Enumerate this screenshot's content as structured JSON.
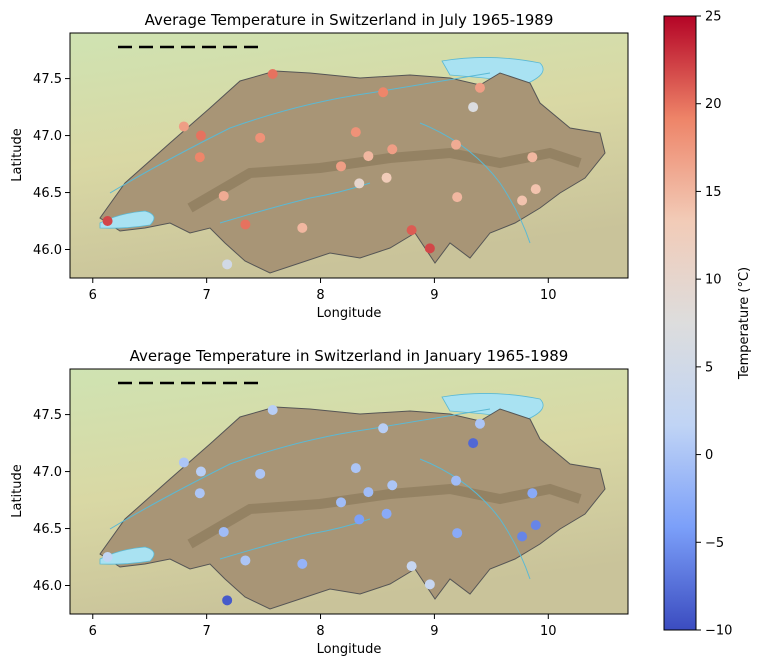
{
  "chart_data": [
    {
      "type": "scatter",
      "title": "Average Temperature in Switzerland in July 1965-1989",
      "xlabel": "Longitude",
      "ylabel": "Latitude",
      "xlim": [
        5.8,
        10.7
      ],
      "ylim": [
        45.75,
        47.9
      ],
      "xticks": [
        "6",
        "7",
        "8",
        "9",
        "10"
      ],
      "yticks": [
        "46.0",
        "46.5",
        "47.0",
        "47.5"
      ],
      "background": "shaded-relief map of Switzerland",
      "points": [
        {
          "x": 6.13,
          "y": 46.25,
          "value": 22
        },
        {
          "x": 6.8,
          "y": 47.08,
          "value": 17
        },
        {
          "x": 6.95,
          "y": 47.0,
          "value": 20
        },
        {
          "x": 6.94,
          "y": 46.81,
          "value": 19
        },
        {
          "x": 7.15,
          "y": 46.47,
          "value": 16
        },
        {
          "x": 7.18,
          "y": 45.87,
          "value": 5
        },
        {
          "x": 7.34,
          "y": 46.22,
          "value": 20
        },
        {
          "x": 7.47,
          "y": 46.98,
          "value": 18
        },
        {
          "x": 7.58,
          "y": 47.54,
          "value": 20
        },
        {
          "x": 7.84,
          "y": 46.19,
          "value": 15
        },
        {
          "x": 8.18,
          "y": 46.73,
          "value": 17
        },
        {
          "x": 8.31,
          "y": 47.03,
          "value": 18
        },
        {
          "x": 8.34,
          "y": 46.58,
          "value": 10
        },
        {
          "x": 8.42,
          "y": 46.82,
          "value": 15
        },
        {
          "x": 8.55,
          "y": 47.38,
          "value": 19
        },
        {
          "x": 8.58,
          "y": 46.63,
          "value": 13
        },
        {
          "x": 8.63,
          "y": 46.88,
          "value": 17
        },
        {
          "x": 8.8,
          "y": 46.17,
          "value": 21
        },
        {
          "x": 8.96,
          "y": 46.01,
          "value": 22
        },
        {
          "x": 9.19,
          "y": 46.92,
          "value": 16
        },
        {
          "x": 9.2,
          "y": 46.46,
          "value": 15
        },
        {
          "x": 9.34,
          "y": 47.25,
          "value": 7
        },
        {
          "x": 9.4,
          "y": 47.42,
          "value": 17
        },
        {
          "x": 9.77,
          "y": 46.43,
          "value": 14
        },
        {
          "x": 9.86,
          "y": 46.81,
          "value": 15
        },
        {
          "x": 9.89,
          "y": 46.53,
          "value": 14
        }
      ]
    },
    {
      "type": "scatter",
      "title": "Average Temperature in Switzerland in January 1965-1989",
      "xlabel": "Longitude",
      "ylabel": "Latitude",
      "xlim": [
        5.8,
        10.7
      ],
      "ylim": [
        45.75,
        47.9
      ],
      "xticks": [
        "6",
        "7",
        "8",
        "9",
        "10"
      ],
      "yticks": [
        "46.0",
        "46.5",
        "47.0",
        "47.5"
      ],
      "background": "shaded-relief map of Switzerland",
      "points": [
        {
          "x": 6.13,
          "y": 46.25,
          "value": 2
        },
        {
          "x": 6.8,
          "y": 47.08,
          "value": 0
        },
        {
          "x": 6.95,
          "y": 47.0,
          "value": 1
        },
        {
          "x": 6.94,
          "y": 46.81,
          "value": 0
        },
        {
          "x": 7.15,
          "y": 46.47,
          "value": -1
        },
        {
          "x": 7.18,
          "y": 45.87,
          "value": -9
        },
        {
          "x": 7.34,
          "y": 46.22,
          "value": 0
        },
        {
          "x": 7.47,
          "y": 46.98,
          "value": 0
        },
        {
          "x": 7.58,
          "y": 47.54,
          "value": 1
        },
        {
          "x": 7.84,
          "y": 46.19,
          "value": -2
        },
        {
          "x": 8.18,
          "y": 46.73,
          "value": -1
        },
        {
          "x": 8.31,
          "y": 47.03,
          "value": 0
        },
        {
          "x": 8.34,
          "y": 46.58,
          "value": -4
        },
        {
          "x": 8.42,
          "y": 46.82,
          "value": -1
        },
        {
          "x": 8.55,
          "y": 47.38,
          "value": 1
        },
        {
          "x": 8.58,
          "y": 46.63,
          "value": -3
        },
        {
          "x": 8.63,
          "y": 46.88,
          "value": 0
        },
        {
          "x": 8.8,
          "y": 46.17,
          "value": 3
        },
        {
          "x": 8.96,
          "y": 46.01,
          "value": 3
        },
        {
          "x": 9.19,
          "y": 46.92,
          "value": -1
        },
        {
          "x": 9.2,
          "y": 46.46,
          "value": -3
        },
        {
          "x": 9.34,
          "y": 47.25,
          "value": -8
        },
        {
          "x": 9.4,
          "y": 47.42,
          "value": 0
        },
        {
          "x": 9.77,
          "y": 46.43,
          "value": -6
        },
        {
          "x": 9.86,
          "y": 46.81,
          "value": -3
        },
        {
          "x": 9.89,
          "y": 46.53,
          "value": -6
        }
      ]
    }
  ],
  "colorbar": {
    "label": "Temperature (°C)",
    "min": -10,
    "max": 25,
    "ticks": [
      "25",
      "20",
      "15",
      "10",
      "5",
      "0",
      "−5",
      "−10"
    ],
    "colormap": "coolwarm",
    "stops": [
      "#3b4cc0",
      "#7b9ff9",
      "#c0d4f5",
      "#dddddd",
      "#f2cbb7",
      "#ee8468",
      "#b40426"
    ]
  }
}
